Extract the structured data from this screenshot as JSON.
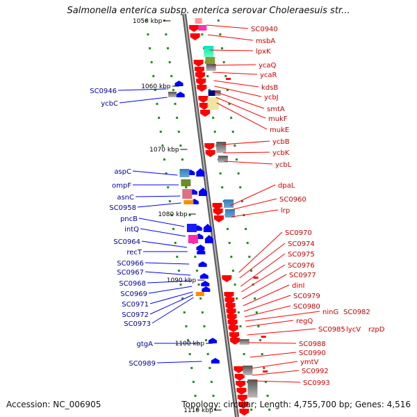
{
  "title": "Salmonella enterica subsp. enterica serovar Choleraesuis str...",
  "footer": {
    "accession": "Accession: NC_006905",
    "topology": "Topology: circular; Length: 4,755,700 bp; Genes: 4,516"
  },
  "scale_labels": [
    "1050 kbp",
    "1060 kbp",
    "1070 kbp",
    "1080 kbp",
    "1090 kbp",
    "1100 kbp",
    "1110 kbp"
  ],
  "left_labels": [
    "SC0946",
    "ycbC",
    "aspC",
    "ompF",
    "asnC",
    "SC0958",
    "pncB",
    "intQ",
    "SC0964",
    "recT",
    "SC0966",
    "SC0967",
    "SC0968",
    "SC0969",
    "SC0971",
    "SC0972",
    "SC0973",
    "gtgA",
    "SC0989"
  ],
  "right_labels": [
    "SC0940",
    "msbA",
    "lpxK",
    "ycaQ",
    "ycaR",
    "kdsB",
    "ycbJ",
    "smtA",
    "mukF",
    "mukE",
    "ycbB",
    "ycbK",
    "ycbL",
    "dpaL",
    "SC0960",
    "lrp",
    "SC0970",
    "SC0974",
    "SC0975",
    "SC0976",
    "SC0977",
    "dinI",
    "SC0979",
    "SC0980",
    "ninG",
    "SC0982",
    "regQ",
    "SC0985",
    "lycV",
    "rzpD",
    "SC0988",
    "SC0990",
    "ymtV",
    "SC0992",
    "SC0993"
  ],
  "colors": {
    "forward_strand": "#ff0000",
    "reverse_strand": "#0000ff",
    "right_label": "#cc0000",
    "left_label": "#000099",
    "tick": "#228b22",
    "backbone": "#888888"
  }
}
